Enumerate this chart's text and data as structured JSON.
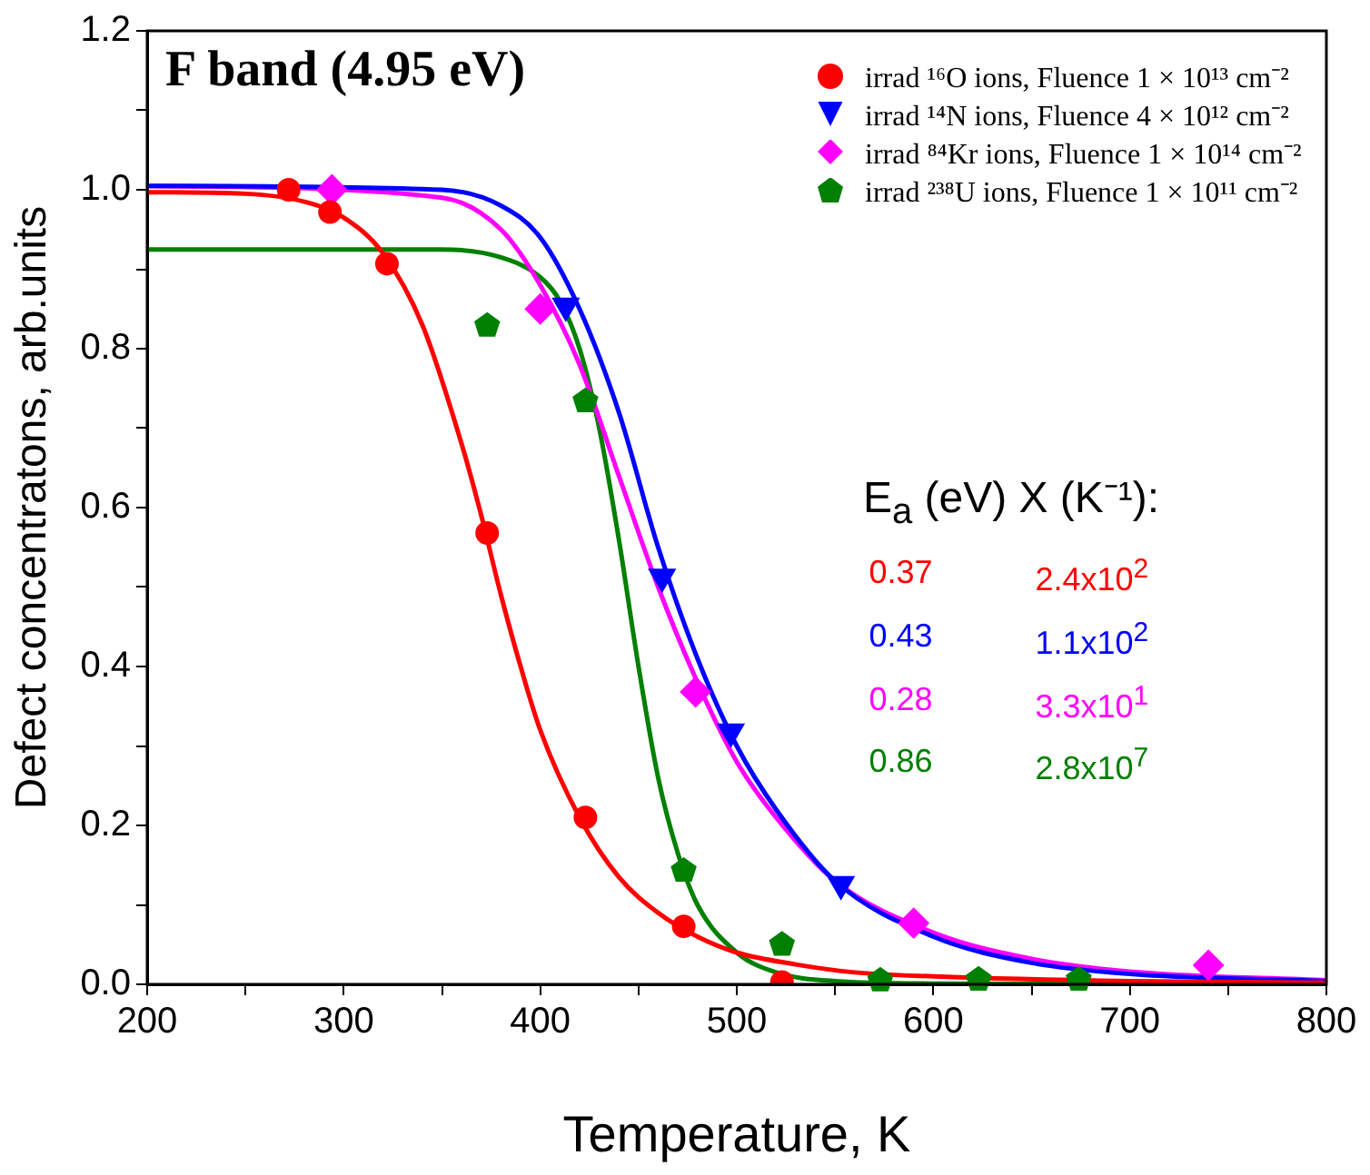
{
  "chart_data": {
    "type": "scatter",
    "title": "F band (4.95 eV)",
    "xlabel": "Temperature, K",
    "ylabel": "Defect concentratons, arb.units",
    "xlim": [
      200,
      800
    ],
    "xticks": [
      200,
      {
        "value": 250,
        "label": null
      },
      300,
      {
        "value": 350,
        "label": null
      },
      400,
      {
        "value": 450,
        "label": null
      },
      500,
      {
        "value": 550,
        "label": null
      },
      600,
      {
        "value": 650,
        "label": null
      },
      700,
      {
        "value": 750,
        "label": null
      },
      800
    ],
    "ylim": [
      0,
      1.2
    ],
    "yticks": [
      {
        "value": 0,
        "label": "0.0"
      },
      {
        "value": 0.1,
        "label": null
      },
      {
        "value": 0.2,
        "label": "0.2"
      },
      {
        "value": 0.3,
        "label": null
      },
      {
        "value": 0.4,
        "label": "0.4"
      },
      {
        "value": 0.5,
        "label": null
      },
      {
        "value": 0.6,
        "label": "0.6"
      },
      {
        "value": 0.7,
        "label": null
      },
      {
        "value": 0.8,
        "label": "0.8"
      },
      {
        "value": 0.9,
        "label": null
      },
      {
        "value": 1.0,
        "label": "1.0"
      },
      {
        "value": 1.1,
        "label": null
      },
      {
        "value": 1.2,
        "label": "1.2"
      }
    ],
    "legend": "top right",
    "series": [
      {
        "name": "irrad ¹⁶O ions, Fluence 1 × 10¹³ cm⁻²",
        "marker": "circle",
        "color": "#ff0000",
        "x": [
          272,
          293,
          322,
          373,
          423,
          473,
          523
        ],
        "values": [
          1.0,
          0.972,
          0.907,
          0.568,
          0.21,
          0.073,
          0.003
        ]
      },
      {
        "name": "irrad ¹⁴N ions, Fluence 4 × 10¹² cm⁻²",
        "marker": "triangle-down",
        "color": "#0000ff",
        "x": [
          413,
          462,
          497,
          553
        ],
        "values": [
          0.854,
          0.513,
          0.318,
          0.126
        ]
      },
      {
        "name": "irrad ⁸⁴Kr ions, Fluence 1 × 10¹⁴ cm⁻²",
        "marker": "diamond",
        "color": "#ff00ff",
        "x": [
          294,
          400,
          479,
          590,
          740
        ],
        "values": [
          1.0,
          0.85,
          0.368,
          0.077,
          0.024
        ]
      },
      {
        "name": "irrad ²³⁸U ions, Fluence 1 × 10¹¹ cm⁻²",
        "color": "#008000",
        "x": [
          373,
          423,
          473,
          523,
          573,
          623,
          674
        ],
        "values": [
          0.829,
          0.734,
          0.143,
          0.05,
          0.005,
          0.006,
          0.006
        ]
      },
      {
        "type": "line",
        "color": "#ff0000",
        "x": [
          200,
          250,
          280,
          300,
          320,
          340,
          360,
          370,
          380,
          390,
          400,
          420,
          440,
          460,
          480,
          500,
          530,
          560,
          600,
          700,
          800
        ],
        "values": [
          0.997,
          0.995,
          0.985,
          0.965,
          0.92,
          0.83,
          0.68,
          0.59,
          0.49,
          0.4,
          0.32,
          0.21,
          0.135,
          0.09,
          0.06,
          0.04,
          0.025,
          0.015,
          0.01,
          0.004,
          0.002
        ]
      },
      {
        "type": "line",
        "color": "#0000ff",
        "x": [
          200,
          350,
          380,
          400,
          420,
          440,
          460,
          480,
          500,
          520,
          550,
          600,
          650,
          700,
          800
        ],
        "values": [
          1.005,
          1.0,
          0.98,
          0.94,
          0.85,
          0.72,
          0.55,
          0.41,
          0.3,
          0.22,
          0.13,
          0.06,
          0.027,
          0.013,
          0.004
        ]
      },
      {
        "type": "line",
        "color": "#ff00ff",
        "x": [
          200,
          350,
          380,
          400,
          420,
          440,
          460,
          480,
          500,
          520,
          550,
          600,
          650,
          700,
          800
        ],
        "values": [
          1.005,
          0.99,
          0.95,
          0.88,
          0.78,
          0.64,
          0.5,
          0.38,
          0.28,
          0.21,
          0.13,
          0.065,
          0.032,
          0.016,
          0.005
        ]
      },
      {
        "type": "line",
        "color": "#008000",
        "x": [
          200,
          350,
          380,
          400,
          410,
          420,
          430,
          440,
          450,
          460,
          470,
          480,
          500,
          520,
          550,
          600,
          800
        ],
        "values": [
          0.925,
          0.925,
          0.915,
          0.89,
          0.86,
          0.8,
          0.7,
          0.56,
          0.4,
          0.26,
          0.165,
          0.1,
          0.04,
          0.015,
          0.004,
          0.001,
          0
        ]
      }
    ],
    "annotations": [
      "E$_{a}$ (eV)  X (K⁻¹):",
      "0.37",
      "2.4x10$^{2}$",
      "0.43",
      "1.1x10$^{2}$",
      "0.28",
      "3.3x10$^{1}$",
      "0.86",
      "2.8x10$^{7}$"
    ]
  }
}
